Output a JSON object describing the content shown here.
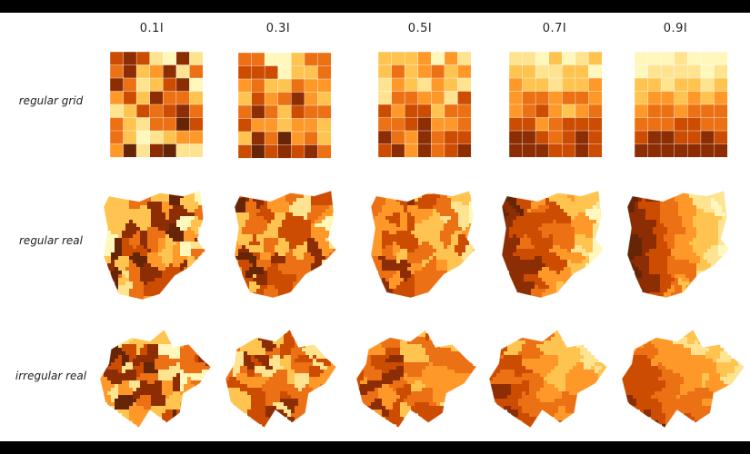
{
  "columns": [
    "0.1I",
    "0.3I",
    "0.5I",
    "0.7I",
    "0.9I"
  ],
  "rows": [
    "regular grid",
    "regular real",
    "irregular  real"
  ],
  "palette": [
    "#fff7bc",
    "#fee391",
    "#fec44f",
    "#fe9929",
    "#ec7014",
    "#cc4c02",
    "#8c2d04",
    "#662506"
  ],
  "frame_color": "#000000"
}
